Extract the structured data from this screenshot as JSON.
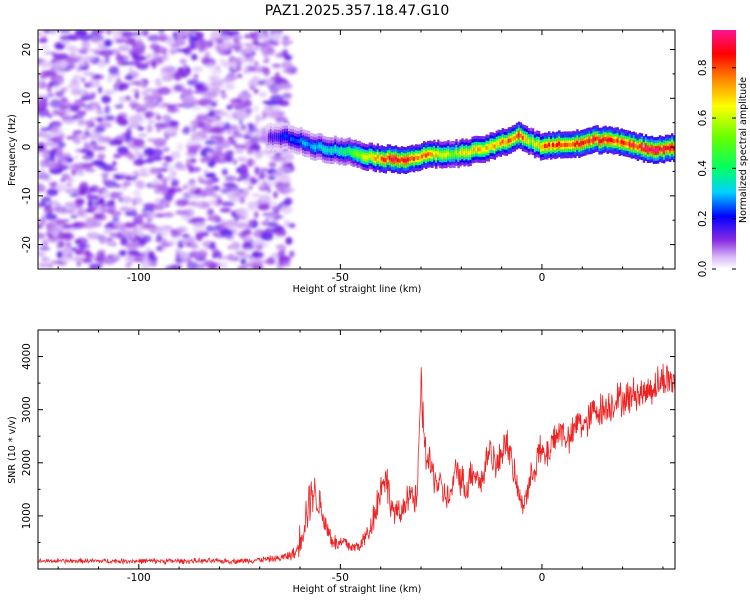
{
  "figure_title": "PAZ1.2025.357.18.47.G10",
  "colors": {
    "snr_line": "#ee2222",
    "frame": "#000000",
    "background": "#ffffff"
  },
  "chart_data": [
    {
      "type": "heatmap",
      "name": "spectrogram",
      "title": "PAZ1.2025.357.18.47.G10",
      "xlabel": "Height of straight line (km)",
      "ylabel": "Frequency (Hz)",
      "xlim": [
        -125,
        33
      ],
      "ylim": [
        -25,
        24
      ],
      "xticks": [
        -100,
        -50,
        0
      ],
      "xtick_labels": [
        "-100",
        "-50",
        "0"
      ],
      "yticks": [
        -20,
        -10,
        0,
        10,
        20
      ],
      "ytick_labels": [
        "-20",
        "-10",
        "0",
        "10",
        "20"
      ],
      "noise_region": {
        "x_start": -125,
        "x_end": -62,
        "amplitude_range": [
          0.05,
          0.25
        ]
      },
      "signal_ridge": {
        "x": [
          -68,
          -63,
          -58,
          -53,
          -48,
          -43,
          -38,
          -33,
          -28,
          -23,
          -18,
          -13,
          -8,
          -6,
          -3,
          0,
          3,
          8,
          13,
          18,
          23,
          28,
          33
        ],
        "frequency": [
          2,
          2,
          0.5,
          -0.5,
          -1,
          -2,
          -2.5,
          -2.5,
          -1.5,
          -1.5,
          -1,
          0,
          1.5,
          2.5,
          1,
          0,
          0.5,
          0.5,
          1.5,
          1.5,
          0,
          -0.5,
          0
        ],
        "amplitude": [
          0.15,
          0.25,
          0.3,
          0.35,
          0.45,
          0.7,
          0.9,
          0.9,
          0.75,
          0.6,
          0.7,
          0.75,
          0.8,
          0.9,
          0.6,
          0.8,
          0.85,
          0.9,
          0.9,
          0.85,
          0.9,
          0.95,
          0.9
        ]
      },
      "colorbar": {
        "label": "Normalized spectral amplitude",
        "range": [
          0,
          0.95
        ],
        "ticks": [
          0.0,
          0.2,
          0.4,
          0.6,
          0.8
        ],
        "tick_labels": [
          "0.0",
          "0.2",
          "0.4",
          "0.6",
          "0.8"
        ]
      }
    },
    {
      "type": "line",
      "name": "snr",
      "xlabel": "Height of straight line (km)",
      "ylabel": "SNR (10 * v/v)",
      "xlim": [
        -125,
        33
      ],
      "ylim": [
        0,
        4500
      ],
      "xticks": [
        -100,
        -50,
        0
      ],
      "xtick_labels": [
        "-100",
        "-50",
        "0"
      ],
      "yticks": [
        1000,
        2000,
        3000,
        4000
      ],
      "ytick_labels": [
        "1000",
        "2000",
        "3000",
        "4000"
      ],
      "series": [
        {
          "name": "SNR",
          "x": [
            -125,
            -100,
            -75,
            -65,
            -61,
            -59,
            -57,
            -55,
            -53,
            -51,
            -49,
            -47,
            -45,
            -43,
            -41,
            -39,
            -37,
            -35,
            -33,
            -31,
            -30,
            -29,
            -27,
            -25,
            -23,
            -21,
            -19,
            -17,
            -15,
            -13,
            -11,
            -9,
            -7,
            -5,
            -3,
            -1,
            1,
            3,
            5,
            7,
            9,
            11,
            13,
            15,
            17,
            19,
            21,
            23,
            25,
            27,
            29,
            31,
            33
          ],
          "values": [
            150,
            150,
            150,
            200,
            300,
            900,
            1500,
            1200,
            700,
            450,
            500,
            400,
            450,
            700,
            1200,
            1800,
            1100,
            1000,
            1500,
            1200,
            3500,
            2200,
            1800,
            1500,
            1300,
            1900,
            1500,
            1900,
            1600,
            2300,
            1900,
            2500,
            1800,
            1200,
            1600,
            2200,
            2100,
            2500,
            2600,
            2400,
            2800,
            2700,
            3000,
            3000,
            3100,
            3200,
            3200,
            3300,
            3300,
            3400,
            3500,
            3600,
            3500
          ],
          "noise_spread": [
            50,
            60,
            60,
            80,
            150,
            600,
            500,
            400,
            300,
            200,
            200,
            150,
            150,
            300,
            400,
            500,
            300,
            300,
            400,
            400,
            400,
            500,
            400,
            400,
            300,
            400,
            400,
            400,
            400,
            400,
            400,
            400,
            350,
            300,
            350,
            400,
            400,
            400,
            400,
            350,
            400,
            400,
            400,
            400,
            400,
            400,
            400,
            400,
            350,
            400,
            400,
            450,
            300
          ]
        }
      ]
    }
  ]
}
